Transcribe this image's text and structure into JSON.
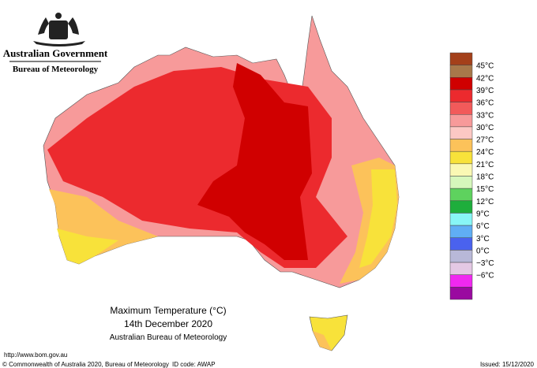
{
  "header": {
    "government": "Australian Government",
    "bureau": "Bureau of Meteorology"
  },
  "legend": {
    "labels": [
      "45°C",
      "42°C",
      "39°C",
      "36°C",
      "33°C",
      "30°C",
      "27°C",
      "24°C",
      "21°C",
      "18°C",
      "15°C",
      "12°C",
      "9°C",
      "6°C",
      "3°C",
      "0°C",
      "−3°C",
      "−6°C"
    ],
    "colors": [
      "#a4401a",
      "#a8784a",
      "#d00000",
      "#ec2a2e",
      "#f25a5a",
      "#f79a9a",
      "#fcc8c4",
      "#fcc25a",
      "#f8e23a",
      "#faf8b4",
      "#d6f7bc",
      "#5ed25e",
      "#1eae3c",
      "#88f6f6",
      "#60aef4",
      "#4a62ee",
      "#b8b8d8",
      "#e4c8e4",
      "#f028f0",
      "#9a0aa0"
    ]
  },
  "caption": {
    "title": "Maximum Temperature (°C)",
    "date": "14th December 2020",
    "source": "Australian Bureau of Meteorology"
  },
  "footer": {
    "url": "http://www.bom.gov.au",
    "copyright": "© Commonwealth of Australia 2020, Bureau of Meteorology",
    "id_code": "ID code: AWAP",
    "issued": "Issued: 15/12/2020"
  }
}
